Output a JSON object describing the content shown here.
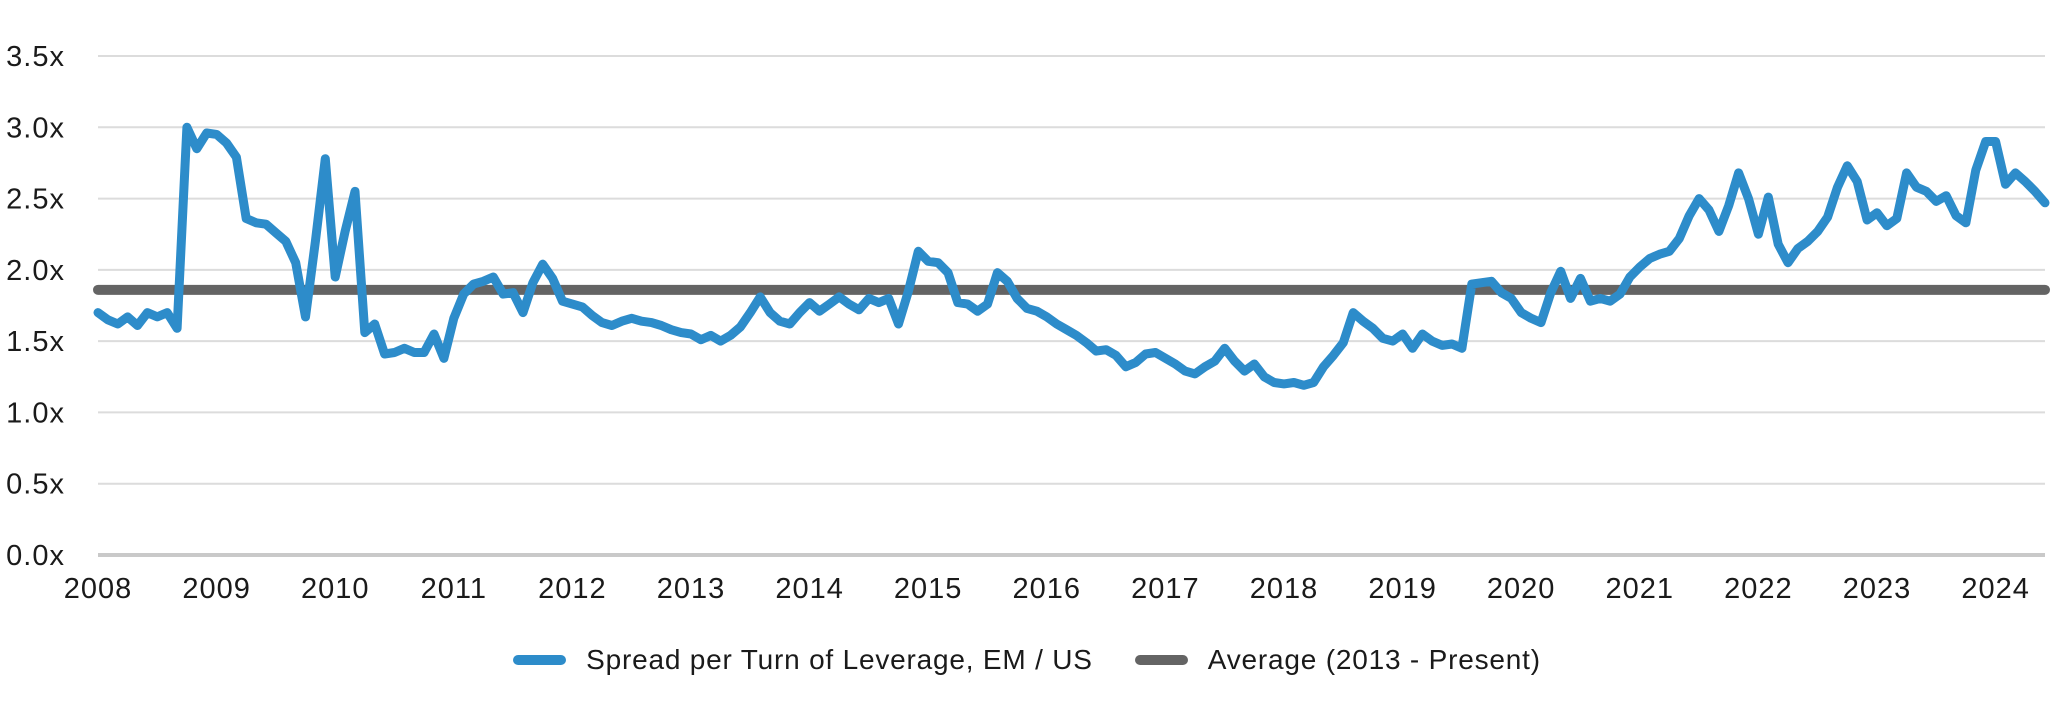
{
  "chart_data": {
    "type": "line",
    "title": "",
    "x_axis": {
      "start": "2008-01",
      "end": "2024-06",
      "frequency": "monthly",
      "tick_labels": [
        "2008",
        "2009",
        "2010",
        "2011",
        "2012",
        "2013",
        "2014",
        "2015",
        "2016",
        "2017",
        "2018",
        "2019",
        "2020",
        "2021",
        "2022",
        "2023",
        "2024"
      ]
    },
    "y_axis": {
      "min": 0,
      "max": 3.5,
      "tick_step": 0.5,
      "tick_labels": [
        "0.0x",
        "0.5x",
        "1.0x",
        "1.5x",
        "2.0x",
        "2.5x",
        "3.0x",
        "3.5x"
      ]
    },
    "grid": {
      "horizontal": true,
      "vertical": false,
      "color": "#DCDCDC",
      "zero_line_color": "#C9C9C9"
    },
    "legend_position": "bottom-center",
    "text_color": "#1A1A1A",
    "background": "#FFFFFF",
    "series": [
      {
        "name": "Spread per Turn of Leverage, EM / US",
        "type": "line",
        "color": "#2D8CCA",
        "stroke_width": 9,
        "values": [
          1.7,
          1.65,
          1.62,
          1.67,
          1.61,
          1.7,
          1.67,
          1.7,
          1.59,
          3.0,
          2.85,
          2.96,
          2.95,
          2.89,
          2.79,
          2.36,
          2.33,
          2.32,
          2.26,
          2.2,
          2.05,
          1.67,
          2.2,
          2.78,
          1.95,
          2.27,
          2.55,
          1.56,
          1.62,
          1.41,
          1.42,
          1.45,
          1.42,
          1.42,
          1.55,
          1.38,
          1.66,
          1.83,
          1.9,
          1.92,
          1.95,
          1.83,
          1.84,
          1.7,
          1.91,
          2.04,
          1.94,
          1.78,
          1.76,
          1.74,
          1.68,
          1.63,
          1.61,
          1.64,
          1.66,
          1.64,
          1.63,
          1.61,
          1.58,
          1.56,
          1.55,
          1.51,
          1.54,
          1.5,
          1.54,
          1.6,
          1.7,
          1.81,
          1.7,
          1.64,
          1.62,
          1.7,
          1.77,
          1.71,
          1.76,
          1.81,
          1.76,
          1.72,
          1.8,
          1.77,
          1.8,
          1.62,
          1.85,
          2.13,
          2.06,
          2.05,
          1.98,
          1.77,
          1.76,
          1.71,
          1.76,
          1.98,
          1.92,
          1.8,
          1.73,
          1.71,
          1.67,
          1.62,
          1.58,
          1.54,
          1.49,
          1.43,
          1.44,
          1.4,
          1.32,
          1.35,
          1.41,
          1.42,
          1.38,
          1.34,
          1.29,
          1.27,
          1.32,
          1.36,
          1.45,
          1.36,
          1.29,
          1.34,
          1.25,
          1.21,
          1.2,
          1.21,
          1.19,
          1.21,
          1.32,
          1.4,
          1.49,
          1.7,
          1.64,
          1.59,
          1.52,
          1.5,
          1.55,
          1.45,
          1.55,
          1.5,
          1.47,
          1.48,
          1.45,
          1.9,
          1.91,
          1.92,
          1.84,
          1.8,
          1.7,
          1.66,
          1.63,
          1.84,
          1.99,
          1.8,
          1.94,
          1.78,
          1.8,
          1.78,
          1.83,
          1.95,
          2.02,
          2.08,
          2.11,
          2.13,
          2.22,
          2.38,
          2.5,
          2.42,
          2.27,
          2.45,
          2.68,
          2.5,
          2.25,
          2.51,
          2.18,
          2.05,
          2.15,
          2.2,
          2.27,
          2.37,
          2.58,
          2.73,
          2.62,
          2.35,
          2.4,
          2.31,
          2.36,
          2.68,
          2.58,
          2.55,
          2.48,
          2.52,
          2.38,
          2.33,
          2.7,
          2.9,
          2.9,
          2.6,
          2.68,
          2.62,
          2.55,
          2.47
        ]
      },
      {
        "name": "Average (2013 - Present)",
        "type": "hline",
        "color": "#646464",
        "stroke_width": 10,
        "value": 1.86
      }
    ]
  }
}
